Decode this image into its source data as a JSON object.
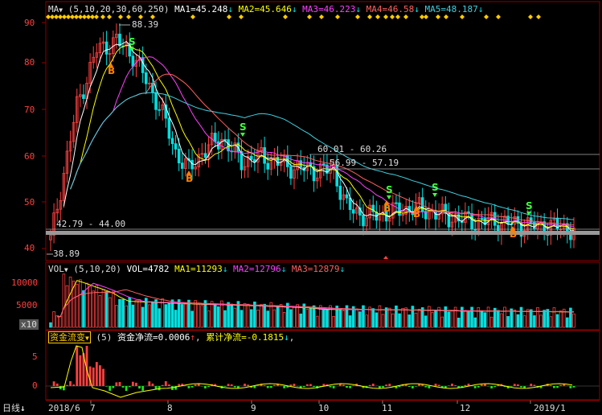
{
  "colors": {
    "bg": "#000000",
    "frame": "#8b0000",
    "up": "#ff4040",
    "down": "#00e0e0",
    "ma1": "#ffffff",
    "ma2": "#ffff00",
    "ma3": "#ff40ff",
    "ma4": "#ff6060",
    "ma5": "#40d0e0",
    "buy": "#ff8000",
    "sell": "#40ff40",
    "axis_text": "#ff4040",
    "diamond": "#ffcc00"
  },
  "main_panel": {
    "indicator": "MA",
    "params": "(5,10,20,30,60,250)",
    "ma_values": [
      {
        "label": "MA1=45.248",
        "arrow": "↓"
      },
      {
        "label": "MA2=45.646",
        "arrow": "↓"
      },
      {
        "label": "MA3=46.223",
        "arrow": "↓"
      },
      {
        "label": "MA4=46.58",
        "arrow": "↓"
      },
      {
        "label": "MA5=48.187",
        "arrow": "↓"
      }
    ],
    "y_ticks": [
      "90",
      "80",
      "70",
      "60",
      "50",
      "40"
    ],
    "annotations": {
      "high": "88.39",
      "low": "38.89",
      "range1": "60.01 - 60.26",
      "range2": "56.99 - 57.19",
      "range3": "42.79 - 44.00"
    },
    "buy_label": "B",
    "sell_label": "S"
  },
  "vol_panel": {
    "indicator": "VOL",
    "params": "(5,10,20)",
    "vol": "VOL=4782",
    "ma_values": [
      {
        "label": "MA1=11293",
        "arrow": "↓"
      },
      {
        "label": "MA2=12796",
        "arrow": "↓"
      },
      {
        "label": "MA3=12879",
        "arrow": "↓"
      }
    ],
    "y_ticks": [
      "10000",
      "5000"
    ],
    "unit": "x10"
  },
  "flow_panel": {
    "indicator": "资金流变",
    "params": "(5)",
    "net": "资金净流=0.0006",
    "net_arrow": "↑",
    "cum": "累计净流=-0.1815",
    "cum_arrow": "↓",
    "y_ticks": [
      "5",
      "0"
    ]
  },
  "x_axis": {
    "period": "日线",
    "labels": [
      "2018/6",
      "7",
      "8",
      "9",
      "10",
      "11",
      "12",
      "2019/1"
    ]
  }
}
